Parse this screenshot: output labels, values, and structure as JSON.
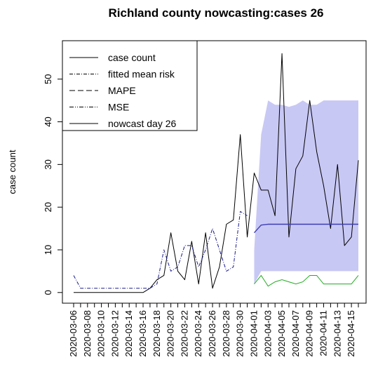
{
  "chart_data": {
    "type": "line",
    "title": "Richland county nowcasting:cases  26",
    "xlabel": "",
    "ylabel": "case count",
    "ylim": [
      -2.5,
      59
    ],
    "yticks": [
      0,
      10,
      20,
      30,
      40,
      50
    ],
    "xtick_labels": [
      "2020-03-06",
      "2020-03-08",
      "2020-03-10",
      "2020-03-12",
      "2020-03-14",
      "2020-03-16",
      "2020-03-18",
      "2020-03-20",
      "2020-03-22",
      "2020-03-24",
      "2020-03-26",
      "2020-03-28",
      "2020-03-30",
      "2020-04-01",
      "2020-04-03",
      "2020-04-05",
      "2020-04-07",
      "2020-04-09",
      "2020-04-11",
      "2020-04-13",
      "2020-04-15"
    ],
    "x_start": "2020-03-06",
    "x_end": "2020-04-16",
    "legend_position": "top-left",
    "legend": [
      "case count",
      "fitted mean risk",
      "MAPE",
      "MSE",
      "nowcast day 26"
    ],
    "colors": {
      "case": "#000000",
      "fitted": "#1a1a8c",
      "nowcast": "#3c3cb4",
      "band": "#c8c8f5",
      "lower": "#22aa22"
    },
    "series": [
      {
        "name": "case count",
        "x": [
          "2020-03-06",
          "2020-03-07",
          "2020-03-08",
          "2020-03-09",
          "2020-03-10",
          "2020-03-11",
          "2020-03-12",
          "2020-03-13",
          "2020-03-14",
          "2020-03-15",
          "2020-03-16",
          "2020-03-17",
          "2020-03-18",
          "2020-03-19",
          "2020-03-20",
          "2020-03-21",
          "2020-03-22",
          "2020-03-23",
          "2020-03-24",
          "2020-03-25",
          "2020-03-26",
          "2020-03-27",
          "2020-03-28",
          "2020-03-29",
          "2020-03-30",
          "2020-03-31",
          "2020-04-01",
          "2020-04-02",
          "2020-04-03",
          "2020-04-04",
          "2020-04-05",
          "2020-04-06",
          "2020-04-07",
          "2020-04-08",
          "2020-04-09",
          "2020-04-10",
          "2020-04-11",
          "2020-04-12",
          "2020-04-13",
          "2020-04-14",
          "2020-04-15",
          "2020-04-16"
        ],
        "values": [
          0,
          0,
          0,
          0,
          0,
          0,
          0,
          0,
          0,
          0,
          0,
          1,
          3,
          4,
          14,
          5,
          3,
          12,
          2,
          14,
          1,
          6,
          16,
          17,
          37,
          13,
          28,
          24,
          24,
          18,
          56,
          13,
          29,
          32,
          45,
          33,
          25,
          15,
          30,
          11,
          13,
          31
        ]
      },
      {
        "name": "fitted mean risk",
        "x": [
          "2020-03-06",
          "2020-03-07",
          "2020-03-08",
          "2020-03-09",
          "2020-03-10",
          "2020-03-11",
          "2020-03-12",
          "2020-03-13",
          "2020-03-14",
          "2020-03-15",
          "2020-03-16",
          "2020-03-17",
          "2020-03-18",
          "2020-03-19",
          "2020-03-20",
          "2020-03-21",
          "2020-03-22",
          "2020-03-23",
          "2020-03-24",
          "2020-03-25",
          "2020-03-26",
          "2020-03-27",
          "2020-03-28",
          "2020-03-29",
          "2020-03-30",
          "2020-03-31"
        ],
        "values": [
          4,
          1,
          1,
          1,
          1,
          1,
          1,
          1,
          1,
          1,
          1,
          1,
          2,
          10,
          5,
          6,
          11,
          11,
          6,
          10,
          15,
          10,
          5,
          6,
          19,
          18
        ]
      },
      {
        "name": "nowcast day 26",
        "x": [
          "2020-04-01",
          "2020-04-02",
          "2020-04-03",
          "2020-04-04",
          "2020-04-05",
          "2020-04-06",
          "2020-04-07",
          "2020-04-08",
          "2020-04-09",
          "2020-04-10",
          "2020-04-11",
          "2020-04-12",
          "2020-04-13",
          "2020-04-14",
          "2020-04-15",
          "2020-04-16"
        ],
        "values": [
          14,
          15.8,
          16,
          16,
          16,
          16,
          16,
          16,
          16,
          16,
          16,
          16,
          16,
          16,
          16,
          16
        ]
      }
    ],
    "band": {
      "x": [
        "2020-04-01",
        "2020-04-02",
        "2020-04-03",
        "2020-04-04",
        "2020-04-05",
        "2020-04-06",
        "2020-04-07",
        "2020-04-08",
        "2020-04-09",
        "2020-04-10",
        "2020-04-11",
        "2020-04-12",
        "2020-04-13",
        "2020-04-14",
        "2020-04-15",
        "2020-04-16"
      ],
      "upper": [
        10,
        37,
        45,
        44,
        44,
        43.5,
        44,
        45,
        44,
        44,
        45,
        45,
        45,
        45,
        45,
        45
      ],
      "lower": [
        2,
        5,
        5,
        5,
        5,
        5,
        5,
        5,
        5,
        5,
        5,
        5,
        5,
        5,
        5,
        5
      ]
    },
    "lower_line": {
      "x": [
        "2020-04-01",
        "2020-04-02",
        "2020-04-03",
        "2020-04-04",
        "2020-04-05",
        "2020-04-06",
        "2020-04-07",
        "2020-04-08",
        "2020-04-09",
        "2020-04-10",
        "2020-04-11",
        "2020-04-12",
        "2020-04-13",
        "2020-04-14",
        "2020-04-15",
        "2020-04-16"
      ],
      "values": [
        2,
        4,
        1.5,
        2.5,
        3,
        2.5,
        2,
        2.5,
        4,
        4,
        2,
        2,
        2,
        2,
        2,
        4
      ]
    }
  }
}
